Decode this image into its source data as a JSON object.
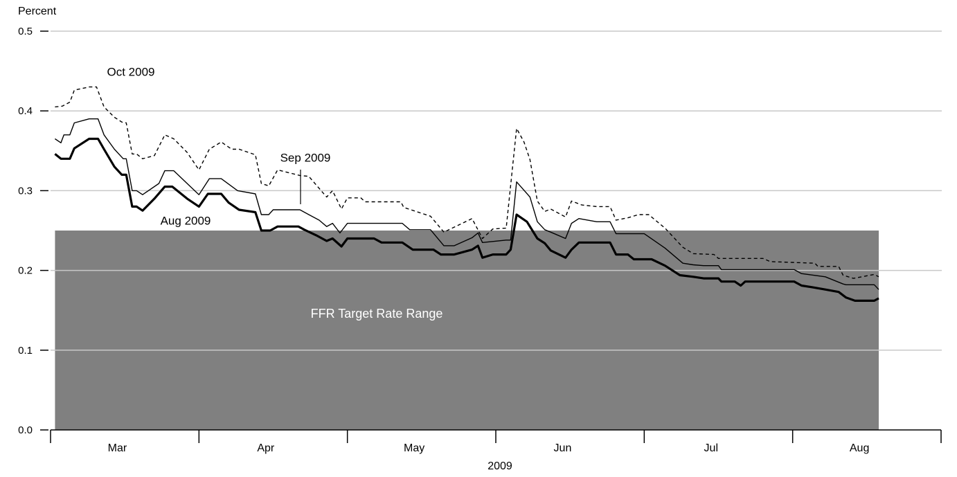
{
  "chart_data": {
    "type": "line",
    "y_label": "Percent",
    "x_label": "2009",
    "xlim": [
      0,
      6
    ],
    "xticks": [
      0,
      1,
      2,
      3,
      4,
      5,
      6
    ],
    "categories": [
      "Mar",
      "Apr",
      "May",
      "Jun",
      "Jul",
      "Aug"
    ],
    "ylim": [
      0,
      0.5
    ],
    "yticks": [
      {
        "value": 0,
        "label": "0.0"
      },
      0.1,
      0.2,
      0.3,
      0.4,
      0.5
    ],
    "grid": true,
    "band": {
      "label": "FFR Target Rate Range",
      "x": [
        0.03,
        5.58
      ],
      "y": [
        0,
        0.25
      ],
      "color": "#808080"
    },
    "series": [
      {
        "name": "Aug 2009",
        "color": "#000000",
        "line_width": 3.2,
        "dashed": false,
        "x": [
          0.03,
          0.07,
          0.13,
          0.16,
          0.26,
          0.32,
          0.36,
          0.43,
          0.48,
          0.51,
          0.55,
          0.58,
          0.62,
          0.7,
          0.77,
          0.82,
          0.92,
          1.0,
          1.06,
          1.15,
          1.2,
          1.27,
          1.38,
          1.42,
          1.48,
          1.53,
          1.67,
          1.71,
          1.79,
          1.86,
          1.9,
          1.96,
          2.0,
          2.18,
          2.23,
          2.37,
          2.44,
          2.58,
          2.63,
          2.72,
          2.84,
          2.88,
          2.91,
          2.98,
          3.07,
          3.1,
          3.14,
          3.21,
          3.28,
          3.33,
          3.37,
          3.47,
          3.51,
          3.56,
          3.77,
          3.81,
          3.89,
          3.93,
          4.05,
          4.14,
          4.24,
          4.33,
          4.4,
          4.5,
          4.52,
          4.61,
          4.65,
          4.68,
          5.01,
          5.06,
          5.13,
          5.22,
          5.31,
          5.36,
          5.42,
          5.55,
          5.58
        ],
        "values": [
          0.346,
          0.34,
          0.34,
          0.353,
          0.365,
          0.365,
          0.352,
          0.33,
          0.32,
          0.32,
          0.28,
          0.28,
          0.275,
          0.29,
          0.305,
          0.305,
          0.29,
          0.28,
          0.296,
          0.296,
          0.285,
          0.276,
          0.273,
          0.25,
          0.25,
          0.255,
          0.255,
          0.251,
          0.244,
          0.237,
          0.24,
          0.23,
          0.24,
          0.24,
          0.235,
          0.235,
          0.226,
          0.226,
          0.22,
          0.22,
          0.226,
          0.231,
          0.216,
          0.22,
          0.22,
          0.226,
          0.27,
          0.261,
          0.24,
          0.234,
          0.225,
          0.216,
          0.226,
          0.235,
          0.235,
          0.22,
          0.22,
          0.214,
          0.214,
          0.206,
          0.194,
          0.192,
          0.19,
          0.19,
          0.186,
          0.186,
          0.181,
          0.186,
          0.186,
          0.181,
          0.179,
          0.176,
          0.173,
          0.166,
          0.162,
          0.162,
          0.165
        ]
      },
      {
        "name": "Sep 2009",
        "color": "#000000",
        "line_width": 1.4,
        "dashed": false,
        "x": [
          0.03,
          0.07,
          0.09,
          0.13,
          0.16,
          0.26,
          0.32,
          0.36,
          0.43,
          0.49,
          0.51,
          0.55,
          0.58,
          0.62,
          0.73,
          0.77,
          0.83,
          0.92,
          1.0,
          1.07,
          1.15,
          1.26,
          1.38,
          1.42,
          1.47,
          1.5,
          1.68,
          1.74,
          1.81,
          1.86,
          1.9,
          1.95,
          2.0,
          2.37,
          2.42,
          2.56,
          2.65,
          2.72,
          2.84,
          2.88,
          2.91,
          3.07,
          3.1,
          3.14,
          3.23,
          3.28,
          3.33,
          3.37,
          3.47,
          3.51,
          3.56,
          3.68,
          3.77,
          3.81,
          4.0,
          4.14,
          4.26,
          4.33,
          4.4,
          4.5,
          4.52,
          5.01,
          5.06,
          5.22,
          5.34,
          5.36,
          5.55,
          5.58
        ],
        "values": [
          0.365,
          0.36,
          0.37,
          0.37,
          0.385,
          0.39,
          0.39,
          0.37,
          0.352,
          0.34,
          0.34,
          0.3,
          0.3,
          0.295,
          0.309,
          0.325,
          0.325,
          0.309,
          0.295,
          0.315,
          0.315,
          0.3,
          0.296,
          0.27,
          0.27,
          0.276,
          0.276,
          0.27,
          0.263,
          0.255,
          0.259,
          0.247,
          0.259,
          0.259,
          0.251,
          0.251,
          0.231,
          0.231,
          0.241,
          0.247,
          0.235,
          0.238,
          0.238,
          0.311,
          0.292,
          0.261,
          0.251,
          0.248,
          0.24,
          0.259,
          0.265,
          0.261,
          0.261,
          0.246,
          0.246,
          0.228,
          0.209,
          0.207,
          0.206,
          0.206,
          0.201,
          0.201,
          0.196,
          0.192,
          0.183,
          0.182,
          0.182,
          0.176
        ]
      },
      {
        "name": "Oct 2009",
        "color": "#000000",
        "line_width": 1.4,
        "dashed": true,
        "x": [
          0.03,
          0.08,
          0.13,
          0.16,
          0.26,
          0.31,
          0.36,
          0.43,
          0.48,
          0.51,
          0.55,
          0.58,
          0.62,
          0.7,
          0.77,
          0.83,
          0.92,
          1.0,
          1.07,
          1.15,
          1.22,
          1.27,
          1.38,
          1.42,
          1.47,
          1.53,
          1.68,
          1.74,
          1.86,
          1.9,
          1.96,
          2.0,
          2.09,
          2.12,
          2.36,
          2.38,
          2.56,
          2.65,
          2.84,
          2.91,
          2.98,
          3.07,
          3.14,
          3.19,
          3.23,
          3.28,
          3.33,
          3.37,
          3.47,
          3.51,
          3.58,
          3.68,
          3.77,
          3.81,
          3.89,
          3.96,
          4.03,
          4.14,
          4.26,
          4.33,
          4.47,
          4.5,
          4.8,
          4.85,
          5.15,
          5.17,
          5.31,
          5.34,
          5.41,
          5.55,
          5.58
        ],
        "values": [
          0.405,
          0.406,
          0.411,
          0.426,
          0.43,
          0.43,
          0.405,
          0.392,
          0.386,
          0.385,
          0.346,
          0.346,
          0.34,
          0.344,
          0.37,
          0.365,
          0.348,
          0.326,
          0.352,
          0.361,
          0.352,
          0.352,
          0.345,
          0.309,
          0.306,
          0.326,
          0.319,
          0.318,
          0.292,
          0.3,
          0.277,
          0.291,
          0.291,
          0.286,
          0.286,
          0.279,
          0.268,
          0.248,
          0.265,
          0.24,
          0.252,
          0.253,
          0.378,
          0.361,
          0.339,
          0.287,
          0.274,
          0.277,
          0.267,
          0.287,
          0.282,
          0.28,
          0.28,
          0.263,
          0.266,
          0.27,
          0.27,
          0.253,
          0.229,
          0.221,
          0.22,
          0.215,
          0.215,
          0.211,
          0.209,
          0.205,
          0.205,
          0.194,
          0.19,
          0.195,
          0.192
        ]
      }
    ]
  }
}
